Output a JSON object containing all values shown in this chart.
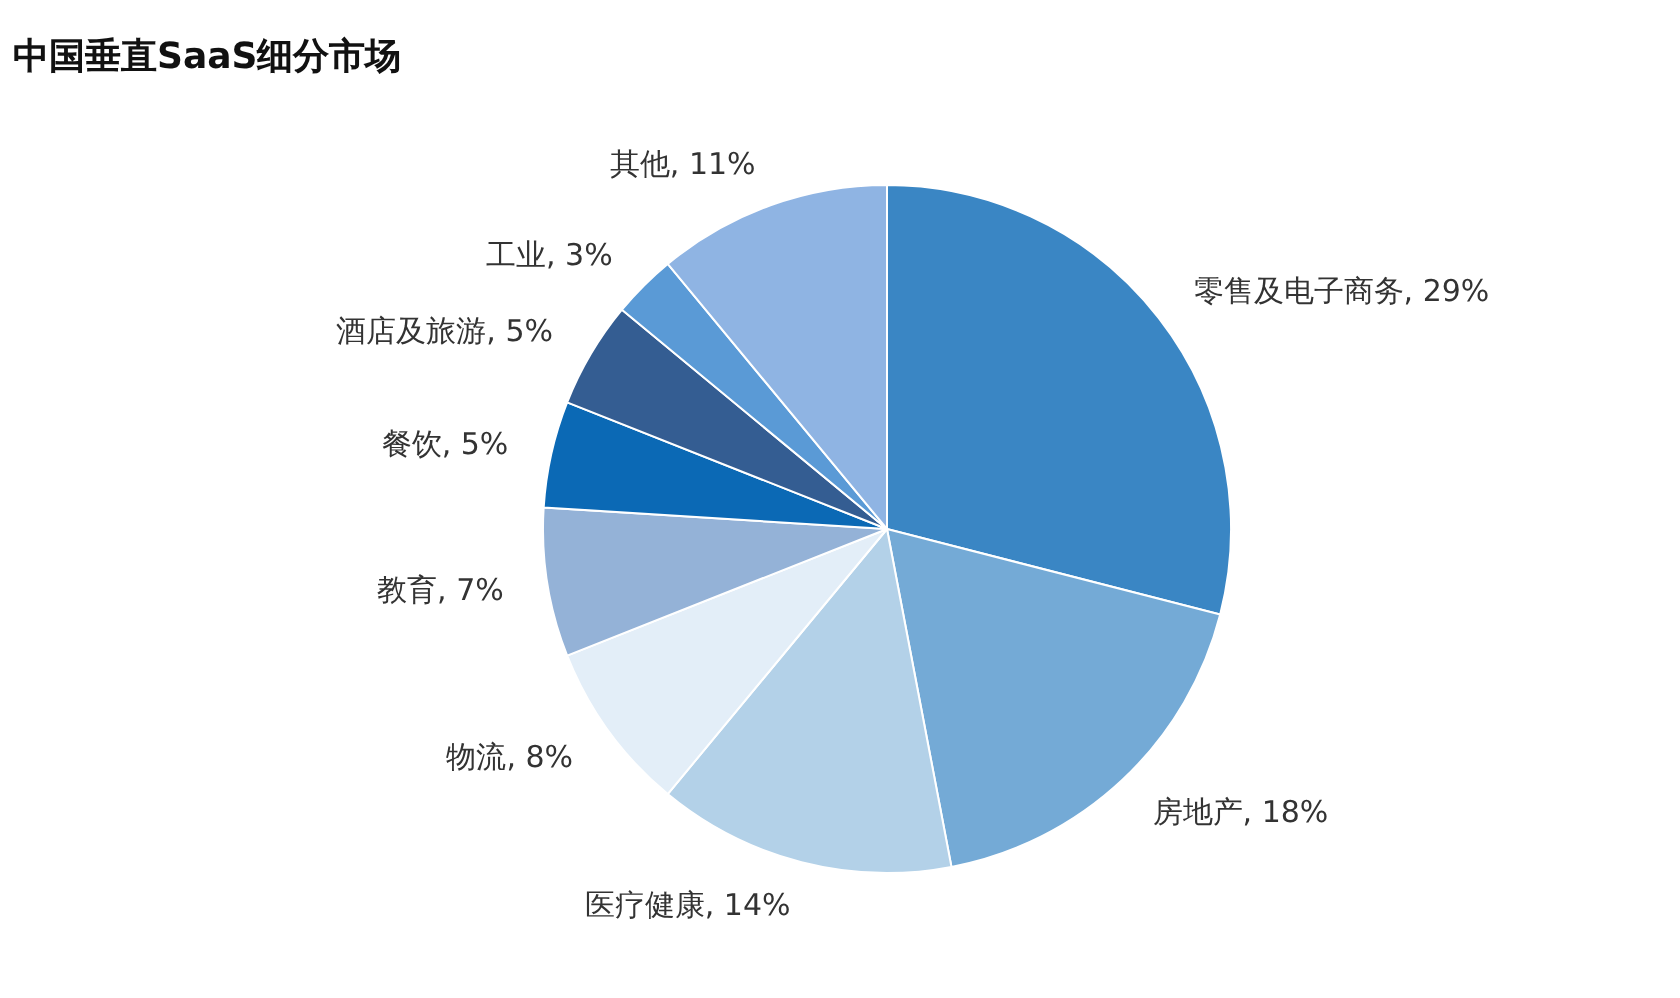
{
  "chart_data": {
    "type": "pie",
    "title": "中国垂直SaaS细分市场",
    "categories": [
      "零售及电子商务",
      "房地产",
      "医疗健康",
      "物流",
      "教育",
      "餐饮",
      "酒店及旅游",
      "工业",
      "其他"
    ],
    "values": [
      29,
      18,
      14,
      8,
      7,
      5,
      5,
      3,
      11
    ],
    "value_labels": [
      "29%",
      "18%",
      "14%",
      "8%",
      "7%",
      "5%",
      "5%",
      "3%",
      "11%"
    ],
    "colors": [
      "#3a86c4",
      "#74aad6",
      "#b3d1e8",
      "#e3eef8",
      "#94b2d7",
      "#0b69b5",
      "#345d92",
      "#5a9ad6",
      "#8fb4e3"
    ]
  }
}
